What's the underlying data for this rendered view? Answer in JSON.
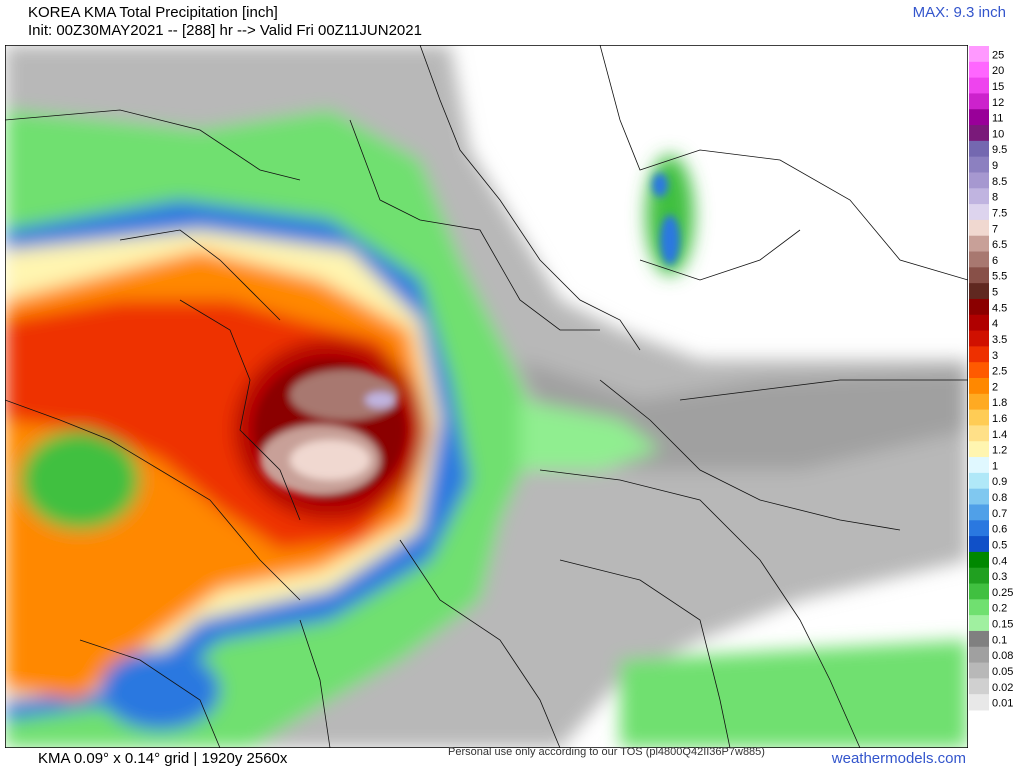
{
  "header": {
    "title": "KOREA KMA Total Precipitation [inch]",
    "init": "Init: 00Z30MAY2021 -- [288] hr --> Valid Fri 00Z11JUN2021",
    "max": "MAX: 9.3 inch"
  },
  "legend": [
    {
      "label": 25,
      "color": "#ff99ff"
    },
    {
      "label": 20,
      "color": "#ff66ff"
    },
    {
      "label": 15,
      "color": "#ee44ee"
    },
    {
      "label": 12,
      "color": "#cc22cc"
    },
    {
      "label": 11,
      "color": "#990099"
    },
    {
      "label": 10,
      "color": "#7a1a7a"
    },
    {
      "label": 9.5,
      "color": "#7468b0"
    },
    {
      "label": 9,
      "color": "#8c80c0"
    },
    {
      "label": 8.5,
      "color": "#a698d0"
    },
    {
      "label": 8,
      "color": "#c0b4e0"
    },
    {
      "label": 7.5,
      "color": "#ddd4ee"
    },
    {
      "label": 7,
      "color": "#f0d8d0"
    },
    {
      "label": 6.5,
      "color": "#c8a098"
    },
    {
      "label": 6,
      "color": "#a87870"
    },
    {
      "label": 5.5,
      "color": "#885048"
    },
    {
      "label": 5,
      "color": "#602820"
    },
    {
      "label": 4.5,
      "color": "#8b0000"
    },
    {
      "label": 4,
      "color": "#b00000"
    },
    {
      "label": 3.5,
      "color": "#d01000"
    },
    {
      "label": 3,
      "color": "#ee3000"
    },
    {
      "label": 2.5,
      "color": "#ff5a00"
    },
    {
      "label": 2,
      "color": "#ff8800"
    },
    {
      "label": 1.8,
      "color": "#ffaa22"
    },
    {
      "label": 1.6,
      "color": "#ffcc55"
    },
    {
      "label": 1.4,
      "color": "#ffe088"
    },
    {
      "label": 1.2,
      "color": "#fff5b0"
    },
    {
      "label": 1,
      "color": "#e0f8ff"
    },
    {
      "label": 0.9,
      "color": "#b0e8f8"
    },
    {
      "label": 0.8,
      "color": "#80c8f0"
    },
    {
      "label": 0.7,
      "color": "#50a0e8"
    },
    {
      "label": 0.6,
      "color": "#2a78e0"
    },
    {
      "label": 0.5,
      "color": "#1050c8"
    },
    {
      "label": 0.4,
      "color": "#008800"
    },
    {
      "label": 0.3,
      "color": "#20a020"
    },
    {
      "label": 0.25,
      "color": "#40c040"
    },
    {
      "label": 0.2,
      "color": "#70e070"
    },
    {
      "label": 0.15,
      "color": "#a0f0a0"
    },
    {
      "label": 0.1,
      "color": "#808080"
    },
    {
      "label": 0.08,
      "color": "#a0a0a0"
    },
    {
      "label": 0.05,
      "color": "#b8b8b8"
    },
    {
      "label": 0.02,
      "color": "#d0d0d0"
    },
    {
      "label": 0.01,
      "color": "#e8e8e8"
    }
  ],
  "footer": {
    "grid": "KMA 0.09° x 0.14° grid | 1920y 2560x",
    "tos": "Personal use only according to our TOS (pl4800Q42II36P7w885)",
    "site": "weathermodels.com"
  }
}
